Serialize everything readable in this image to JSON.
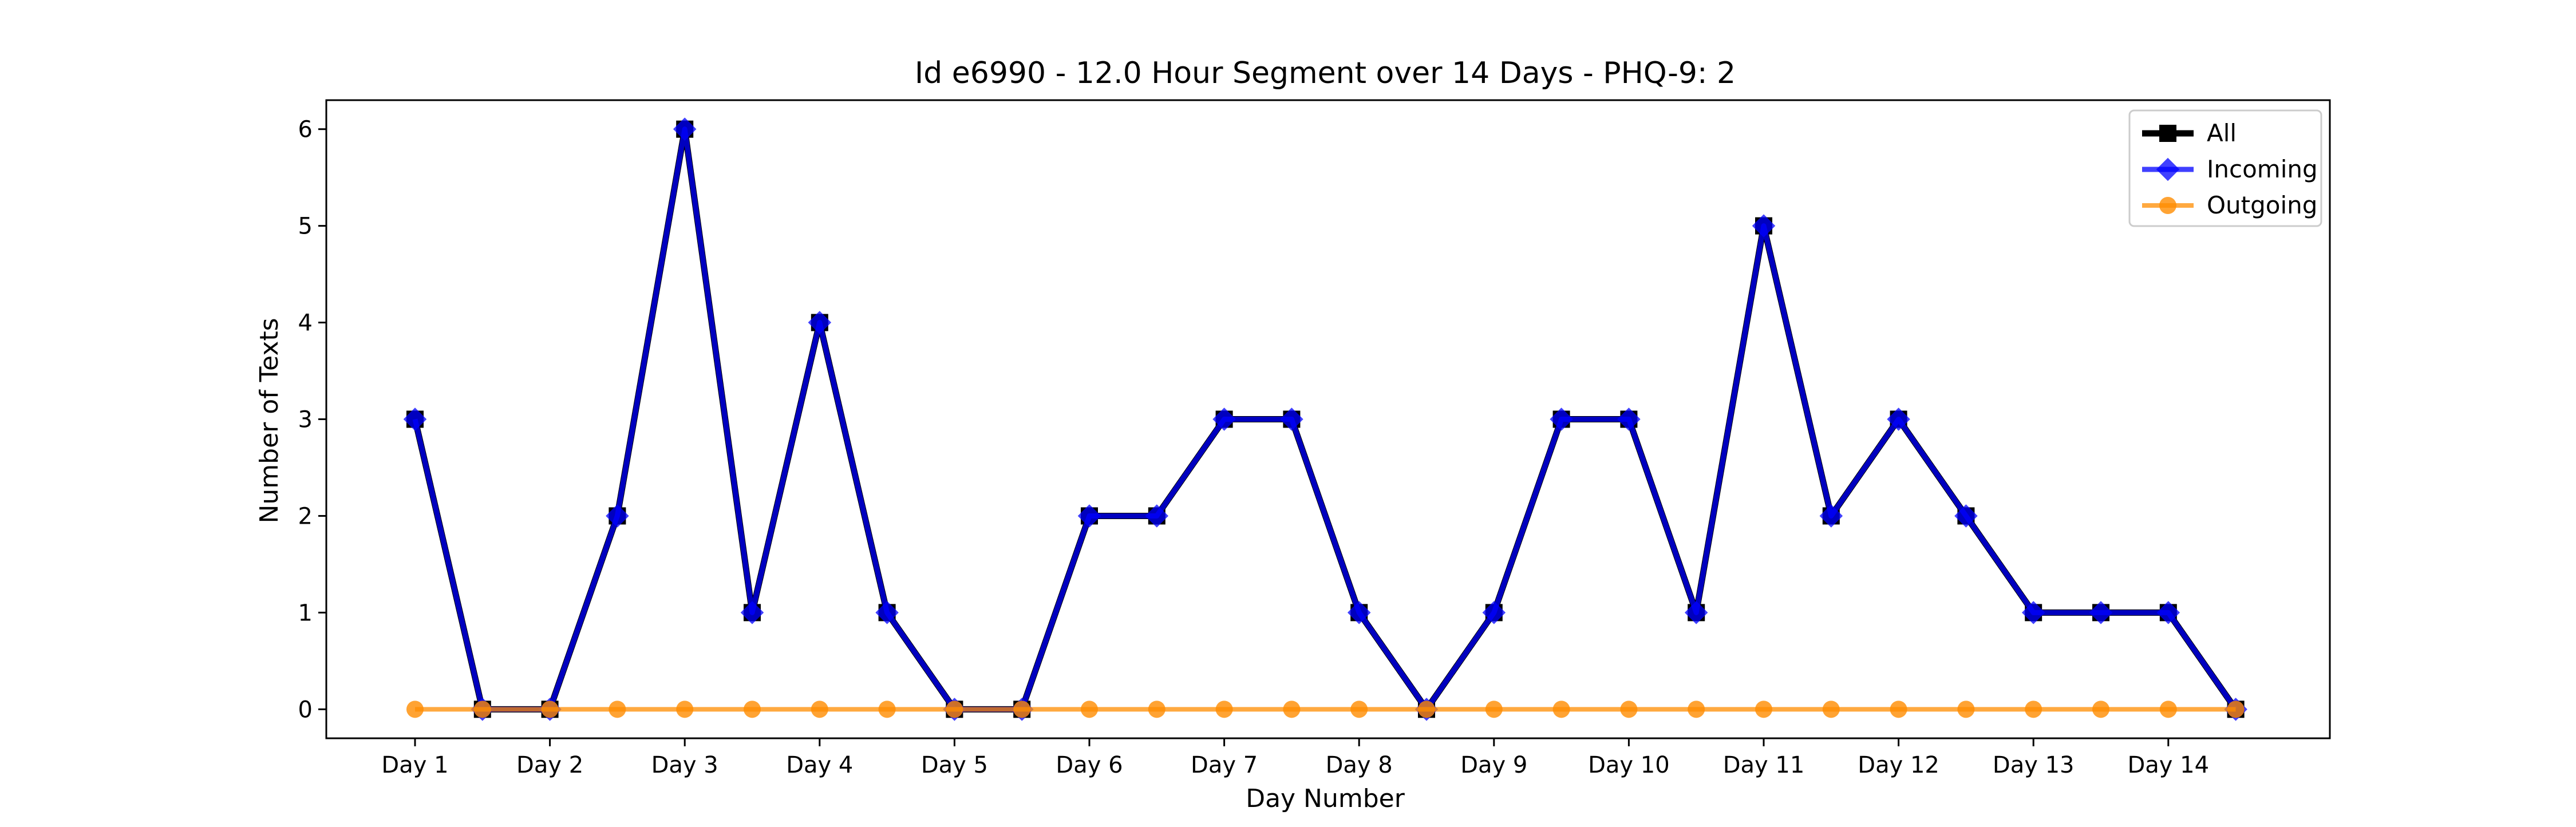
{
  "chart_data": {
    "type": "line",
    "title": "Id e6990 - 12.0 Hour Segment over 14 Days - PHQ-9: 2",
    "xlabel": "Day Number",
    "ylabel": "Number of Texts",
    "x_tick_labels": [
      "Day 1",
      "Day 2",
      "Day 3",
      "Day 4",
      "Day 5",
      "Day 6",
      "Day 7",
      "Day 8",
      "Day 9",
      "Day 10",
      "Day 11",
      "Day 12",
      "Day 13",
      "Day 14"
    ],
    "y_ticks": [
      0,
      1,
      2,
      3,
      4,
      5,
      6
    ],
    "ylim": [
      -0.3,
      6.3
    ],
    "grid": false,
    "legend_position": "top-right",
    "series": [
      {
        "name": "All",
        "color": "#000000",
        "marker": "square",
        "values": [
          3,
          0,
          0,
          2,
          6,
          1,
          4,
          1,
          0,
          0,
          2,
          2,
          3,
          3,
          1,
          0,
          1,
          3,
          3,
          1,
          5,
          2,
          3,
          2,
          1,
          1,
          1,
          0
        ]
      },
      {
        "name": "Incoming",
        "color": "#0000ff",
        "marker": "diamond",
        "values": [
          3,
          0,
          0,
          2,
          6,
          1,
          4,
          1,
          0,
          0,
          2,
          2,
          3,
          3,
          1,
          0,
          1,
          3,
          3,
          1,
          5,
          2,
          3,
          2,
          1,
          1,
          1,
          0
        ]
      },
      {
        "name": "Outgoing",
        "color": "#ff8c00",
        "marker": "circle",
        "values": [
          0,
          0,
          0,
          0,
          0,
          0,
          0,
          0,
          0,
          0,
          0,
          0,
          0,
          0,
          0,
          0,
          0,
          0,
          0,
          0,
          0,
          0,
          0,
          0,
          0,
          0,
          0,
          0
        ]
      }
    ]
  }
}
